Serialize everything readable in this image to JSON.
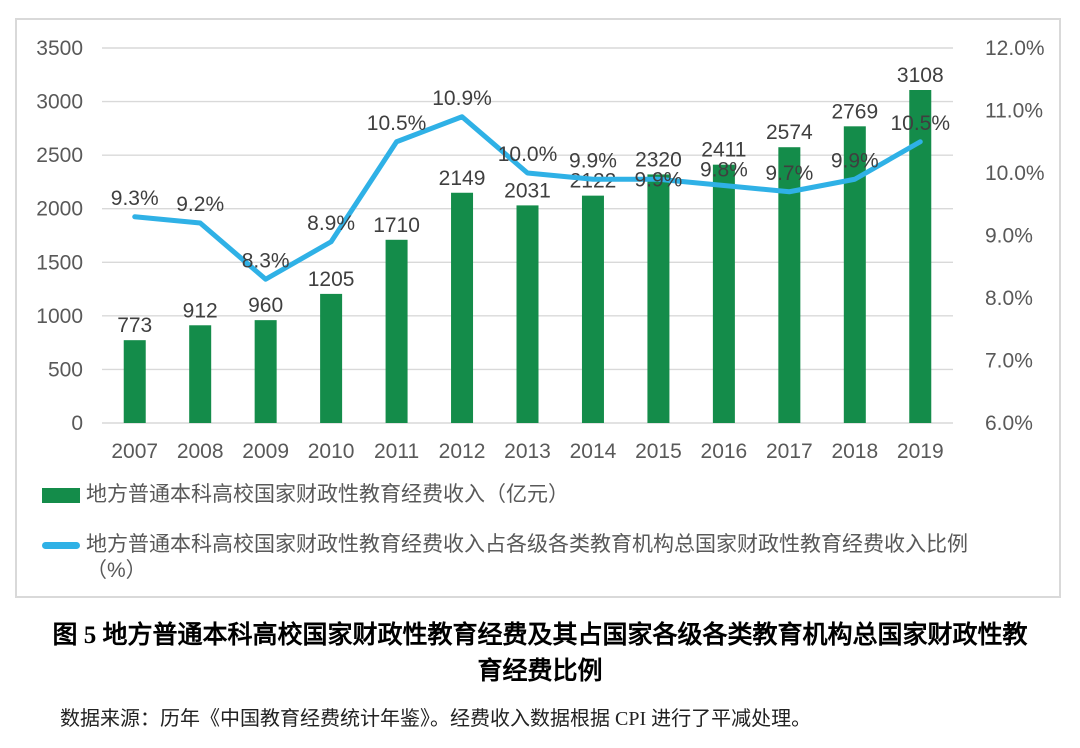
{
  "chart_data": {
    "type": "bar",
    "subtype": "bar+line-combo",
    "categories": [
      "2007",
      "2008",
      "2009",
      "2010",
      "2011",
      "2012",
      "2013",
      "2014",
      "2015",
      "2016",
      "2017",
      "2018",
      "2019"
    ],
    "series": [
      {
        "name": "地方普通本科高校国家财政性教育经费收入（亿元）",
        "type": "bar",
        "axis": "left",
        "color": "#148c4a",
        "values": [
          773,
          912,
          960,
          1205,
          1710,
          2149,
          2031,
          2122,
          2320,
          2411,
          2574,
          2769,
          3108
        ],
        "data_labels": [
          "773",
          "912",
          "960",
          "1205",
          "1710",
          "2149",
          "2031",
          "2122",
          "2320",
          "2411",
          "2574",
          "2769",
          "3108"
        ]
      },
      {
        "name": "地方普通本科高校国家财政性教育经费收入占各级各类教育机构总国家财政性教育经费收入比例（%）",
        "type": "line",
        "axis": "right",
        "color": "#2fb1e6",
        "values": [
          9.3,
          9.2,
          8.3,
          8.9,
          10.5,
          10.9,
          10.0,
          9.9,
          9.9,
          9.8,
          9.7,
          9.9,
          10.5
        ],
        "data_labels": [
          "9.3%",
          "9.2%",
          "8.3%",
          "8.9%",
          "10.5%",
          "10.9%",
          "10.0%",
          "9.9%",
          "9.9%",
          "9.8%",
          "9.7%",
          "9.9%",
          "10.5%"
        ]
      }
    ],
    "left_axis": {
      "min": 0,
      "max": 3500,
      "step": 500,
      "ticks": [
        "3500",
        "3000",
        "2500",
        "2000",
        "1500",
        "1000",
        "500",
        "0"
      ]
    },
    "right_axis": {
      "min": 6,
      "max": 12,
      "step": 1,
      "ticks": [
        "12.0%",
        "11.0%",
        "10.0%",
        "9.0%",
        "8.0%",
        "7.0%",
        "6.0%"
      ]
    },
    "grid": true,
    "legend_position": "bottom",
    "colors": {
      "grid": "#d9d9d9",
      "axis_text": "#595959",
      "data_label_text": "#3f3f3f",
      "frame_border": "#d9d9d9"
    }
  },
  "legend": {
    "items": [
      {
        "swatch": "rect",
        "color": "#148c4a",
        "lines": [
          "地方普通本科高校国家财政性教育经费收入（亿元）",
          ""
        ]
      },
      {
        "swatch": "line",
        "color": "#2fb1e6",
        "lines": [
          "地方普通本科高校国家财政性教育经费收入占各级各类教育机构总国家财政性教育经费收入比例",
          "（%）"
        ]
      }
    ]
  },
  "caption": {
    "lines": [
      "图 5 地方普通本科高校国家财政性教育经费及其占国家各级各类教育机构总国家财政性教",
      "育经费比例"
    ]
  },
  "source_note": "数据来源：历年《中国教育经费统计年鉴》。经费收入数据根据 CPI 进行了平减处理。"
}
